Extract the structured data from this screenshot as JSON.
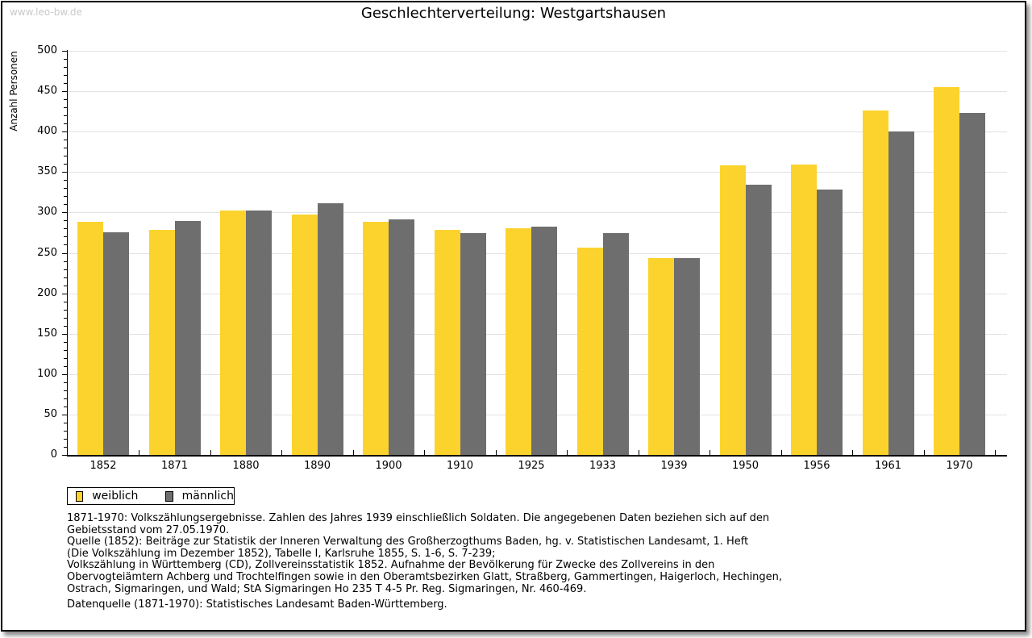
{
  "watermark": "www.leo-bw.de",
  "title": "Geschlechterverteilung: Westgartshausen",
  "chart_data": {
    "type": "bar",
    "title": "Geschlechterverteilung: Westgartshausen",
    "xlabel": "",
    "ylabel": "Anzahl Personen",
    "ylim": [
      0,
      500
    ],
    "ytick_step": 50,
    "yminor_step": 10,
    "grid": true,
    "legend_position": "bottom-left",
    "categories": [
      "1852",
      "1871",
      "1880",
      "1890",
      "1900",
      "1910",
      "1925",
      "1933",
      "1939",
      "1950",
      "1956",
      "1961",
      "1970"
    ],
    "series": [
      {
        "name": "weiblich",
        "color": "#FCD32D",
        "values": [
          288,
          278,
          302,
          297,
          288,
          278,
          280,
          256,
          244,
          358,
          359,
          426,
          455
        ]
      },
      {
        "name": "männlich",
        "color": "#6E6E6E",
        "values": [
          275,
          289,
          302,
          311,
          291,
          274,
          282,
          274,
          244,
          334,
          328,
          400,
          423
        ]
      }
    ]
  },
  "footnotes": [
    "1871-1970: Volkszählungsergebnisse. Zahlen des Jahres 1939 einschließlich Soldaten. Die angegebenen Daten beziehen sich auf den",
    "Gebietsstand vom 27.05.1970.",
    "Quelle (1852): Beiträge zur Statistik der Inneren Verwaltung des Großherzogthums Baden, hg. v. Statistischen Landesamt, 1. Heft",
    "(Die Volkszählung im Dezember 1852), Tabelle I, Karlsruhe 1855, S. 1-6, S. 7-239;",
    "Volkszählung in Württemberg (CD), Zollvereinsstatistik 1852. Aufnahme der Bevölkerung für Zwecke des Zollvereins in den",
    "Obervogteiämtern Achberg und Trochtelfingen sowie in den Oberamtsbezirken Glatt, Straßberg, Gammertingen, Haigerloch, Hechingen,",
    "Ostrach, Sigmaringen, und Wald; StA Sigmaringen Ho 235 T 4-5 Pr. Reg. Sigmaringen, Nr. 460-469."
  ],
  "source_line": "Datenquelle (1871-1970): Statistisches Landesamt Baden-Württemberg."
}
